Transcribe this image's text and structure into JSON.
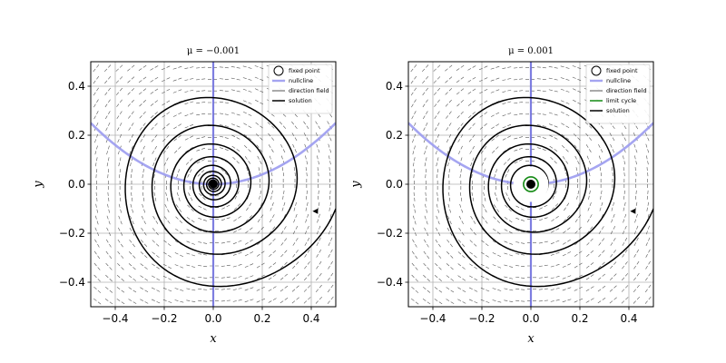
{
  "colors": {
    "nullcline": "#9b9bf0",
    "y_nullcline": "#6e6ee0",
    "direction_field": "#555555",
    "limit_cycle": "#138a13",
    "solution": "#000000",
    "grid": "#b0b0b0"
  },
  "chart_data": [
    {
      "type": "line",
      "title": "μ = −0.001",
      "xlabel": "x",
      "ylabel": "y",
      "xlim": [
        -0.5,
        0.5
      ],
      "ylim": [
        -0.5,
        0.5
      ],
      "xticks": [
        "−0.4",
        "−0.2",
        "0.0",
        "0.2",
        "0.4"
      ],
      "yticks": [
        "−0.4",
        "−0.2",
        "0.0",
        "0.2",
        "0.4"
      ],
      "grid": true,
      "legend_position": "top-right",
      "mu": -0.001,
      "legend": [
        "fixed point",
        "nullcline",
        "direction field",
        "solution"
      ],
      "fixed_point": {
        "x": 0.0,
        "y": 0.0
      },
      "limit_cycle": null,
      "solution_start": {
        "x": 0.5,
        "y": -0.1
      }
    },
    {
      "type": "line",
      "title": "μ = 0.001",
      "xlabel": "x",
      "ylabel": "y",
      "xlim": [
        -0.5,
        0.5
      ],
      "ylim": [
        -0.5,
        0.5
      ],
      "xticks": [
        "−0.4",
        "−0.2",
        "0.0",
        "0.2",
        "0.4"
      ],
      "yticks": [
        "−0.4",
        "−0.2",
        "0.0",
        "0.2",
        "0.4"
      ],
      "grid": true,
      "legend_position": "top-right",
      "mu": 0.001,
      "legend": [
        "fixed point",
        "nullcline",
        "direction field",
        "limit cycle",
        "solution"
      ],
      "fixed_point": {
        "x": 0.0,
        "y": 0.0
      },
      "limit_cycle": {
        "center_x": 0.0,
        "center_y": 0.0,
        "radius": 0.03
      },
      "solution_start": {
        "x": 0.5,
        "y": -0.1
      }
    }
  ]
}
